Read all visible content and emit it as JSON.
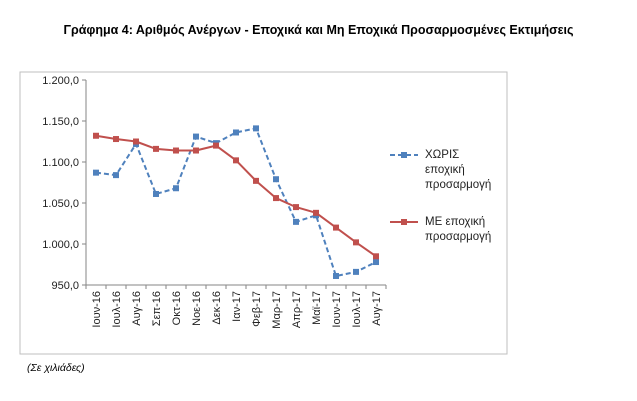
{
  "figure": {
    "title": "Γράφημα 4: Αριθμός Ανέργων - Εποχικά και Μη Εποχικά Προσαρμοσμένες Εκτιμήσεις",
    "note": "(Σε χιλιάδες)"
  },
  "chart_data": {
    "type": "line",
    "title": "",
    "xlabel": "",
    "ylabel": "",
    "categories": [
      "Ιουν-16",
      "Ιουλ-16",
      "Αυγ-16",
      "Σεπ-16",
      "Οκτ-16",
      "Νοε-16",
      "Δεκ-16",
      "Ιαν-17",
      "Φεβ-17",
      "Μαρ-17",
      "Απρ-17",
      "Μαϊ-17",
      "Ιουν-17",
      "Ιουλ-17",
      "Αυγ-17"
    ],
    "ylim": [
      950,
      1200
    ],
    "yticks": [
      950,
      1000,
      1050,
      1100,
      1150,
      1200
    ],
    "ytick_labels": [
      "950,0",
      "1.000,0",
      "1.050,0",
      "1.100,0",
      "1.150,0",
      "1.200,0"
    ],
    "grid": false,
    "legend_position": "right",
    "series": [
      {
        "name": "ΧΩΡΙΣ εποχική προσαρμογή",
        "legend_lines": [
          "ΧΩΡΙΣ",
          "εποχική",
          "προσαρμογή"
        ],
        "color": "#4f81bd",
        "style": "dashed",
        "marker": "square",
        "values": [
          1087,
          1084,
          1122,
          1061,
          1068,
          1131,
          1123,
          1136,
          1141,
          1079,
          1027,
          1035,
          961,
          966,
          978
        ]
      },
      {
        "name": "ΜΕ εποχική προσαρμογή",
        "legend_lines": [
          "ΜΕ εποχική",
          "προσαρμογή"
        ],
        "color": "#c0504d",
        "style": "solid",
        "marker": "square",
        "values": [
          1132,
          1128,
          1125,
          1116,
          1114,
          1114,
          1120,
          1102,
          1077,
          1056,
          1045,
          1038,
          1020,
          1002,
          985
        ]
      }
    ]
  }
}
